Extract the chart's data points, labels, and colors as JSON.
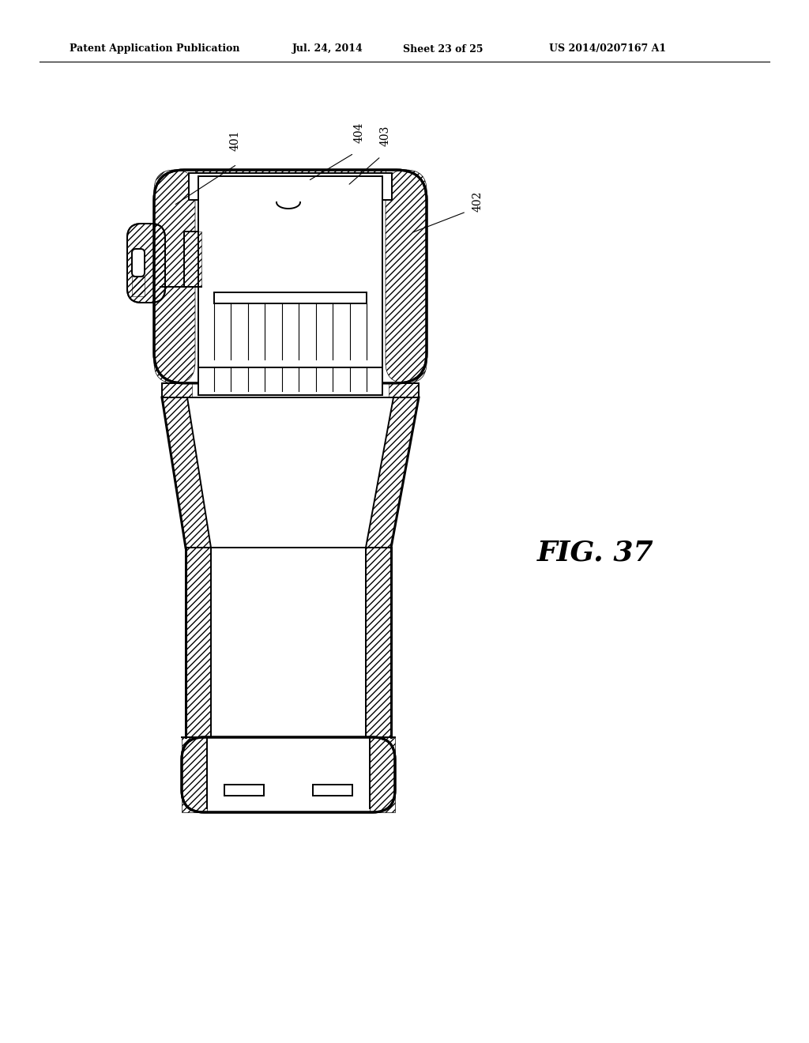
{
  "bg_color": "#ffffff",
  "line_color": "#000000",
  "header_text": "Patent Application Publication",
  "header_date": "Jul. 24, 2014",
  "header_sheet": "Sheet 23 of 25",
  "header_patent": "US 2014/0207167 A1",
  "fig_label": "FIG. 37",
  "label_fontsize": 10,
  "fig_label_fontsize": 26,
  "lw_main": 1.4,
  "lw_thick": 2.2,
  "lw_thin": 0.8
}
